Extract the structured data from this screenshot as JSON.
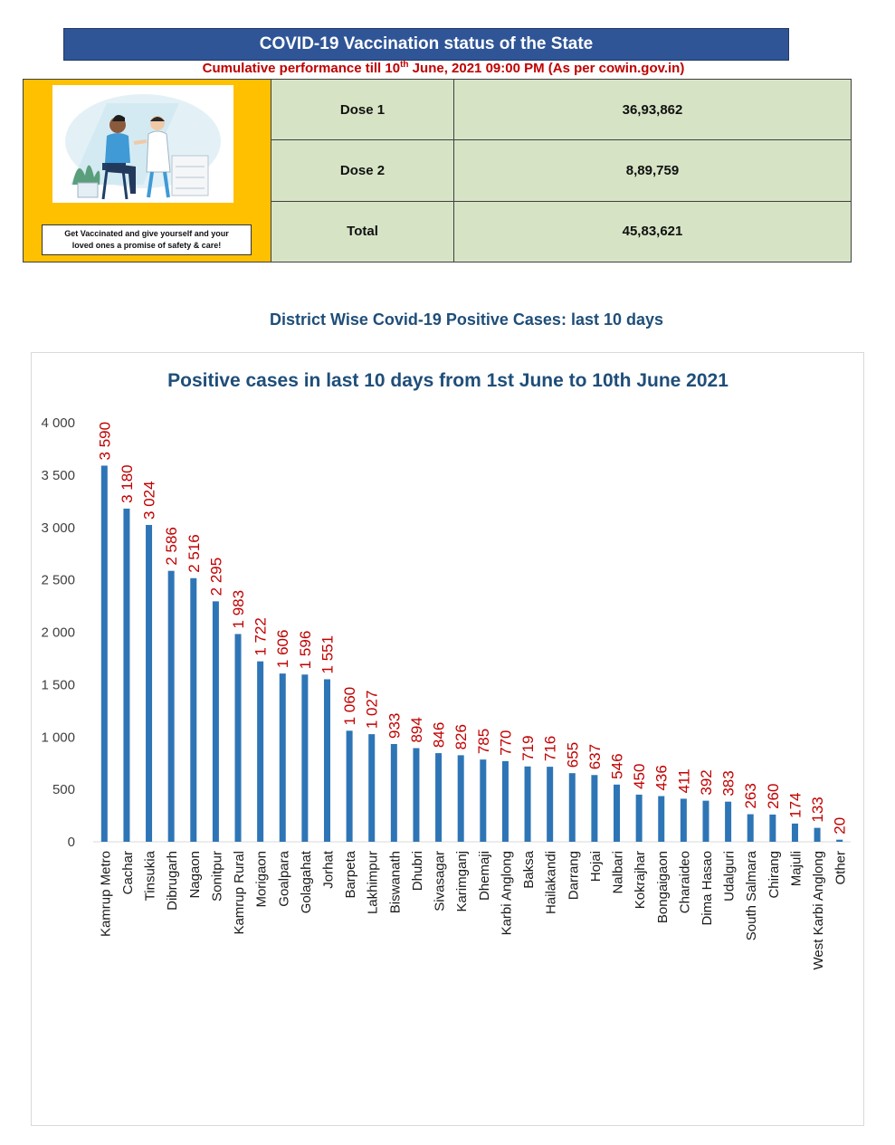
{
  "header": {
    "title": "COVID-19 Vaccination status of the State",
    "subtitle_pre": "Cumulative performance till 10",
    "subtitle_sup": "th",
    "subtitle_post": " June, 2021 09:00  PM (As per cowin.gov.in)"
  },
  "poster": {
    "caption_line1": "Get Vaccinated and give yourself and your",
    "caption_line2": "loved ones a promise of safety & care!"
  },
  "vaccination": [
    {
      "label": "Dose 1",
      "value": "36,93,862"
    },
    {
      "label": "Dose 2",
      "value": "8,89,759"
    },
    {
      "label": "Total",
      "value": "45,83,621"
    }
  ],
  "section_heading": "District Wise Covid-19 Positive Cases: last 10 days",
  "colors": {
    "banner": "#2f5597",
    "subtitle": "#c00000",
    "poster_bg": "#ffc000",
    "table_bg": "#d6e4c5",
    "bar": "#2e75b6",
    "data_label": "#c00000",
    "chart_title": "#1f4e79"
  },
  "chart_data": {
    "type": "bar",
    "title": "Positive cases in last 10 days from 1st June to 10th June 2021",
    "xlabel": "",
    "ylabel": "",
    "ylim": [
      0,
      4000
    ],
    "yticks": [
      "0",
      "500",
      "1 000",
      "1 500",
      "2 000",
      "2 500",
      "3 000",
      "3 500",
      "4 000"
    ],
    "grid": false,
    "legend": "none",
    "categories": [
      "Kamrup Metro",
      "Cachar",
      "Tinsukia",
      "Dibrugarh",
      "Nagaon",
      "Sonitpur",
      "Kamrup Rural",
      "Morigaon",
      "Goalpara",
      "Golagahat",
      "Jorhat",
      "Barpeta",
      "Lakhimpur",
      "Biswanath",
      "Dhubri",
      "Sivasagar",
      "Karimganj",
      "Dhemaji",
      "Karbi Anglong",
      "Baksa",
      "Hailakandi",
      "Darrang",
      "Hojai",
      "Nalbari",
      "Kokrajhar",
      "Bongaigaon",
      "Charaideo",
      "Dima Hasao",
      "Udalguri",
      "South Salmara",
      "Chirang",
      "Majuli",
      "West Karbi Anglong",
      "Other"
    ],
    "values": [
      3590,
      3180,
      3024,
      2586,
      2516,
      2295,
      1983,
      1722,
      1606,
      1596,
      1551,
      1060,
      1027,
      933,
      894,
      846,
      826,
      785,
      770,
      719,
      716,
      655,
      637,
      546,
      450,
      436,
      411,
      392,
      383,
      263,
      260,
      174,
      133,
      20
    ],
    "value_labels": [
      "3 590",
      "3 180",
      "3 024",
      "2 586",
      "2 516",
      "2 295",
      "1 983",
      "1 722",
      "1 606",
      "1 596",
      "1 551",
      "1 060",
      "1 027",
      "933",
      "894",
      "846",
      "826",
      "785",
      "770",
      "719",
      "716",
      "655",
      "637",
      "546",
      "450",
      "436",
      "411",
      "392",
      "383",
      "263",
      "260",
      "174",
      "133",
      "20"
    ]
  }
}
